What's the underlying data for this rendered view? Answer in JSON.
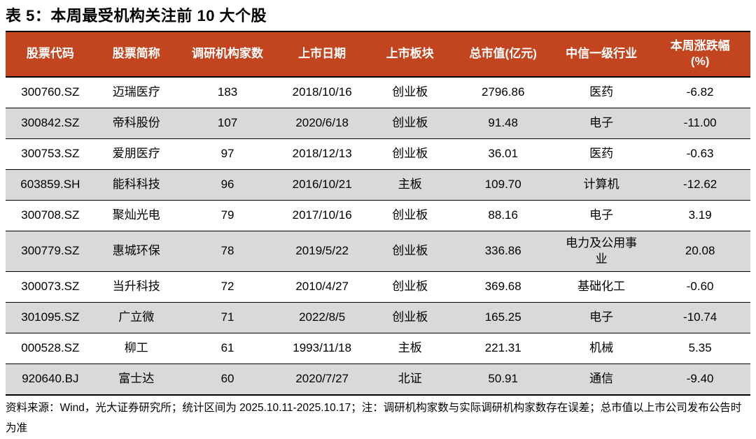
{
  "title": "表 5：本周最受机构关注前 10 大个股",
  "table": {
    "column_keys": [
      "code",
      "name",
      "institution-count",
      "list-date",
      "board",
      "market-cap",
      "industry",
      "weekly-change"
    ],
    "columns": [
      "股票代码",
      "股票简称",
      "调研机构家数",
      "上市日期",
      "上市板块",
      "总市值(亿元)",
      "中信一级行业",
      "本周涨跌幅\n(%)"
    ],
    "rows": [
      [
        "300760.SZ",
        "迈瑞医疗",
        "183",
        "2018/10/16",
        "创业板",
        "2796.86",
        "医药",
        "-6.82"
      ],
      [
        "300842.SZ",
        "帝科股份",
        "107",
        "2020/6/18",
        "创业板",
        "91.48",
        "电子",
        "-11.00"
      ],
      [
        "300753.SZ",
        "爱朋医疗",
        "97",
        "2018/12/13",
        "创业板",
        "36.01",
        "医药",
        "-0.63"
      ],
      [
        "603859.SH",
        "能科科技",
        "96",
        "2016/10/21",
        "主板",
        "109.70",
        "计算机",
        "-12.62"
      ],
      [
        "300708.SZ",
        "聚灿光电",
        "79",
        "2017/10/16",
        "创业板",
        "88.16",
        "电子",
        "3.19"
      ],
      [
        "300779.SZ",
        "惠城环保",
        "78",
        "2019/5/22",
        "创业板",
        "336.86",
        "电力及公用事业",
        "20.08"
      ],
      [
        "300073.SZ",
        "当升科技",
        "72",
        "2010/4/27",
        "创业板",
        "369.68",
        "基础化工",
        "-0.60"
      ],
      [
        "301095.SZ",
        "广立微",
        "71",
        "2022/8/5",
        "创业板",
        "165.25",
        "电子",
        "-10.74"
      ],
      [
        "000528.SZ",
        "柳工",
        "61",
        "1993/11/18",
        "主板",
        "221.31",
        "机械",
        "5.35"
      ],
      [
        "920640.BJ",
        "富士达",
        "60",
        "2020/7/27",
        "北证",
        "50.91",
        "通信",
        "-9.40"
      ]
    ]
  },
  "footnote": "资料来源：Wind，光大证券研究所；统计区间为 2025.10.11-2025.10.17；注：调研机构家数与实际调研机构家数存在误差；总市值以上市公司发布公告时为准",
  "colors": {
    "header_bg": "#C2451F",
    "header_text": "#FFFFFF",
    "stripe": "#D9D9D9",
    "border": "#000000",
    "text": "#000000"
  }
}
